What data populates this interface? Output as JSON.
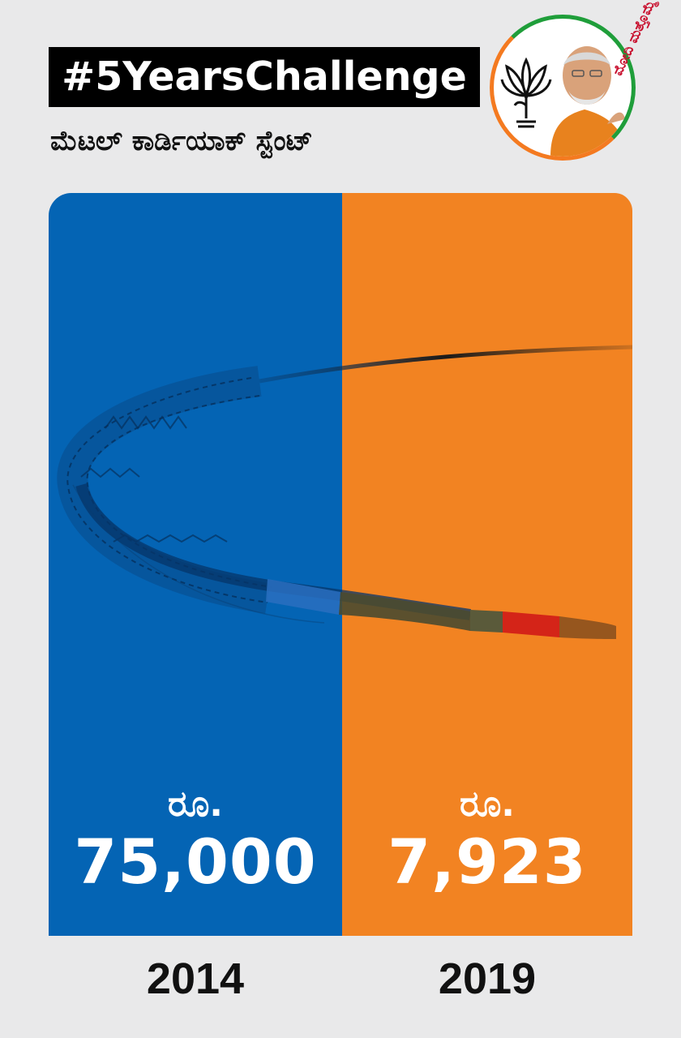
{
  "header": {
    "hashtag": "#5YearsChallenge",
    "subtitle": "ಮೆಟಲ್ ಕಾರ್ಡಿಯಾಕ್ ಸ್ಟೆಂಟ್"
  },
  "badge": {
    "text": "ಮೋದಿ ಮತ್ತೊಮ್ಮೆ",
    "icons": [
      "lotus-logo-icon",
      "leader-portrait"
    ]
  },
  "comparison": [
    {
      "currency": "ರೂ.",
      "amount": "75,000",
      "year": "2014",
      "color": "#0464b4"
    },
    {
      "currency": "ರೂ.",
      "amount": "7,923",
      "year": "2019",
      "color": "#f28322"
    }
  ],
  "colors": {
    "blue": "#0464b4",
    "orange": "#f28322",
    "background": "#e9e9ea",
    "accent_red": "#c8102e"
  }
}
